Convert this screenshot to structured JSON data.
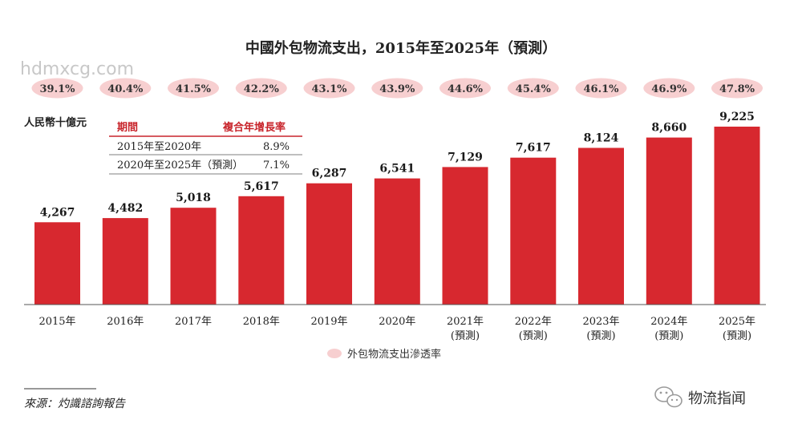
{
  "watermark": "hdmxcg.com",
  "brand": {
    "icon": "wechat-icon",
    "label": "物流指闻"
  },
  "source": "來源：灼識諮詢報告",
  "colors": {
    "bar": "#d7282f",
    "pill": "#f7cfd0",
    "table_header": "#c8242b"
  },
  "cagr_table": {
    "headers": [
      "期間",
      "複合年增長率"
    ],
    "rows": [
      [
        "2015年至2020年",
        "8.9%"
      ],
      [
        "2020年至2025年（預測）",
        "7.1%"
      ]
    ]
  },
  "chart_data": {
    "type": "bar",
    "title": "中國外包物流支出，2015年至2025年（預測）",
    "ylabel": "人民幣十億元",
    "categories": [
      "2015年",
      "2016年",
      "2017年",
      "2018年",
      "2019年",
      "2020年",
      "2021年\n(預測)",
      "2022年\n(預測)",
      "2023年\n(預測)",
      "2024年\n(預測)",
      "2025年\n(預測)"
    ],
    "series": [
      {
        "name": "",
        "values": [
          4267,
          4482,
          5018,
          5617,
          6287,
          6541,
          7129,
          7617,
          8124,
          8660,
          9225
        ]
      },
      {
        "name": "外包物流支出滲透率",
        "values": [
          "39.1%",
          "40.4%",
          "41.5%",
          "42.2%",
          "43.1%",
          "43.9%",
          "44.6%",
          "45.4%",
          "46.1%",
          "46.9%",
          "47.8%"
        ]
      }
    ],
    "ylim": [
      0,
      9225
    ],
    "grid": false,
    "legend_position": "bottom-center"
  }
}
